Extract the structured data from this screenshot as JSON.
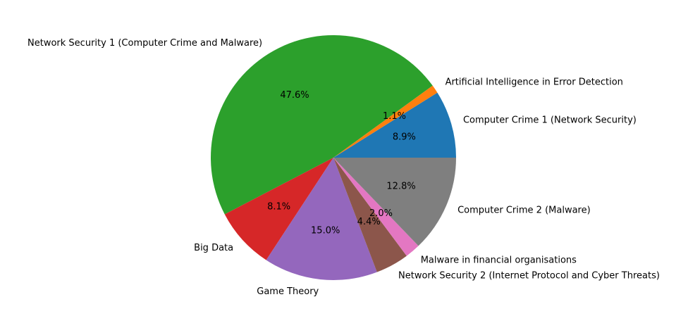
{
  "chart_data": {
    "type": "pie",
    "start_angle": 0,
    "direction": "counterclockwise",
    "slices": [
      {
        "label": "Computer Crime 1 (Network Security)",
        "value": 8.9,
        "pct_label": "8.9%",
        "color": "#1f77b4"
      },
      {
        "label": "Artificial Intelligence in Error Detection",
        "value": 1.1,
        "pct_label": "1.1%",
        "color": "#ff7f0e"
      },
      {
        "label": "Network Security 1  (Computer Crime and Malware)",
        "value": 47.6,
        "pct_label": "47.6%",
        "color": "#2ca02c"
      },
      {
        "label": "Big Data",
        "value": 8.1,
        "pct_label": "8.1%",
        "color": "#d62728"
      },
      {
        "label": "Game Theory",
        "value": 15.0,
        "pct_label": "15.0%",
        "color": "#9467bd"
      },
      {
        "label": "Network Security 2  (Internet Protocol and Cyber Threats)",
        "value": 4.4,
        "pct_label": "4.4%",
        "color": "#8c564b"
      },
      {
        "label": "Malware in financial organisations",
        "value": 2.0,
        "pct_label": "2.0%",
        "color": "#e377c2"
      },
      {
        "label": "Computer Crime 2  (Malware)",
        "value": 12.8,
        "pct_label": "12.8%",
        "color": "#7f7f7f"
      }
    ]
  }
}
